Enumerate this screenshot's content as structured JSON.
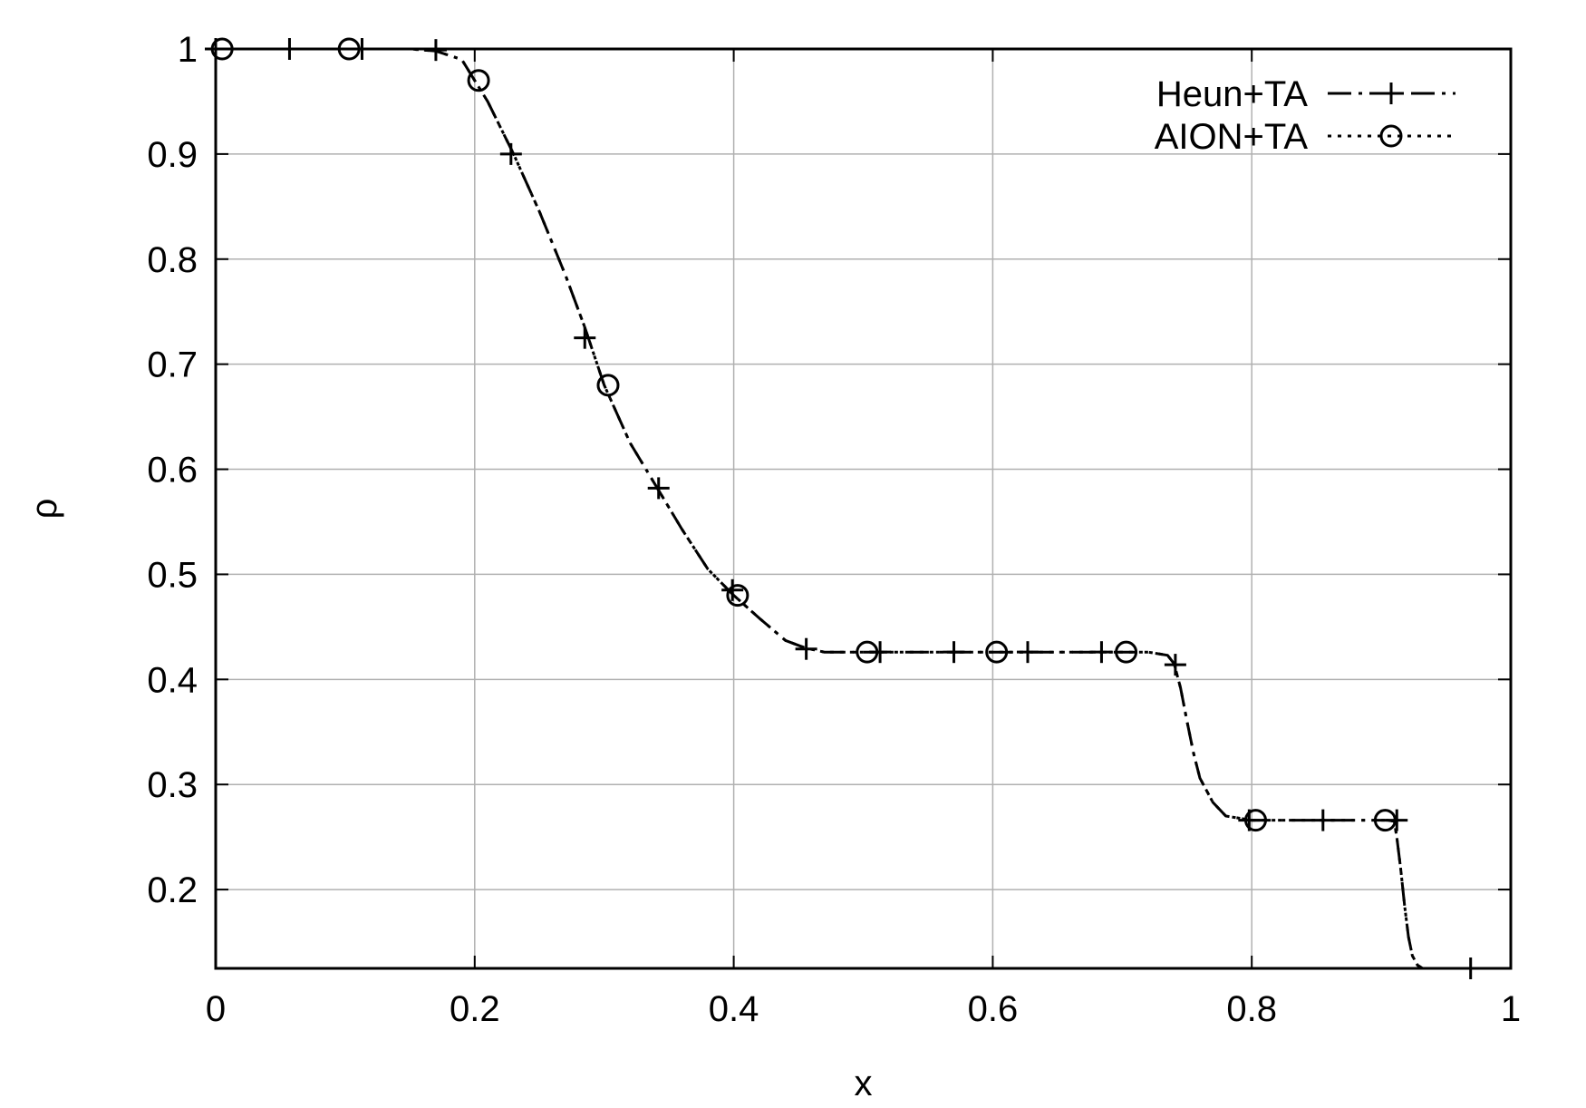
{
  "chart_data": {
    "type": "line",
    "xlabel": "x",
    "ylabel": "ρ",
    "xlim": [
      0,
      1
    ],
    "ylim": [
      0.125,
      1
    ],
    "xticks": [
      0,
      0.2,
      0.4,
      0.6,
      0.8,
      1
    ],
    "xtick_labels": [
      "0",
      "0.2",
      "0.4",
      "0.6",
      "0.8",
      "1"
    ],
    "yticks": [
      0.2,
      0.3,
      0.4,
      0.5,
      0.6,
      0.7,
      0.8,
      0.9,
      1
    ],
    "ytick_labels": [
      "0.2",
      "0.3",
      "0.4",
      "0.5",
      "0.6",
      "0.7",
      "0.8",
      "0.9",
      "1"
    ],
    "grid": true,
    "legend_position": "top-right",
    "curve": {
      "x": [
        0,
        0.05,
        0.1,
        0.15,
        0.17,
        0.19,
        0.2,
        0.21,
        0.22,
        0.23,
        0.25,
        0.27,
        0.285,
        0.3,
        0.32,
        0.342,
        0.36,
        0.38,
        0.4,
        0.42,
        0.44,
        0.455,
        0.47,
        0.5,
        0.55,
        0.6,
        0.65,
        0.7,
        0.72,
        0.735,
        0.74,
        0.745,
        0.75,
        0.755,
        0.76,
        0.77,
        0.78,
        0.8,
        0.85,
        0.9,
        0.905,
        0.91,
        0.912,
        0.915,
        0.918,
        0.921,
        0.924,
        0.928,
        0.932,
        0.94,
        0.96,
        1
      ],
      "y": [
        1,
        1,
        1,
        1,
        0.998,
        0.99,
        0.97,
        0.95,
        0.925,
        0.9,
        0.845,
        0.785,
        0.735,
        0.68,
        0.625,
        0.58,
        0.543,
        0.505,
        0.48,
        0.458,
        0.437,
        0.43,
        0.426,
        0.426,
        0.426,
        0.426,
        0.426,
        0.426,
        0.426,
        0.423,
        0.415,
        0.392,
        0.36,
        0.33,
        0.306,
        0.283,
        0.27,
        0.266,
        0.266,
        0.266,
        0.266,
        0.265,
        0.25,
        0.22,
        0.185,
        0.155,
        0.137,
        0.128,
        0.125,
        0.125,
        0.125,
        0.125
      ]
    },
    "series": [
      {
        "name": "Heun+TA",
        "marker": "plus",
        "line_style": "dash-dot",
        "points": [
          [
            0,
            1
          ],
          [
            0.057,
            1
          ],
          [
            0.113,
            1
          ],
          [
            0.17,
            0.999
          ],
          [
            0.228,
            0.9
          ],
          [
            0.285,
            0.725
          ],
          [
            0.342,
            0.582
          ],
          [
            0.399,
            0.485
          ],
          [
            0.456,
            0.429
          ],
          [
            0.513,
            0.426
          ],
          [
            0.57,
            0.426
          ],
          [
            0.627,
            0.426
          ],
          [
            0.684,
            0.426
          ],
          [
            0.741,
            0.414
          ],
          [
            0.798,
            0.266
          ],
          [
            0.855,
            0.266
          ],
          [
            0.912,
            0.266
          ],
          [
            0.969,
            0.125
          ]
        ]
      },
      {
        "name": "AION+TA",
        "marker": "circle",
        "line_style": "dotted",
        "points": [
          [
            0.005,
            1
          ],
          [
            0.103,
            1
          ],
          [
            0.203,
            0.97
          ],
          [
            0.303,
            0.68
          ],
          [
            0.403,
            0.48
          ],
          [
            0.503,
            0.426
          ],
          [
            0.603,
            0.426
          ],
          [
            0.703,
            0.426
          ],
          [
            0.803,
            0.266
          ],
          [
            0.903,
            0.266
          ]
        ]
      }
    ]
  }
}
